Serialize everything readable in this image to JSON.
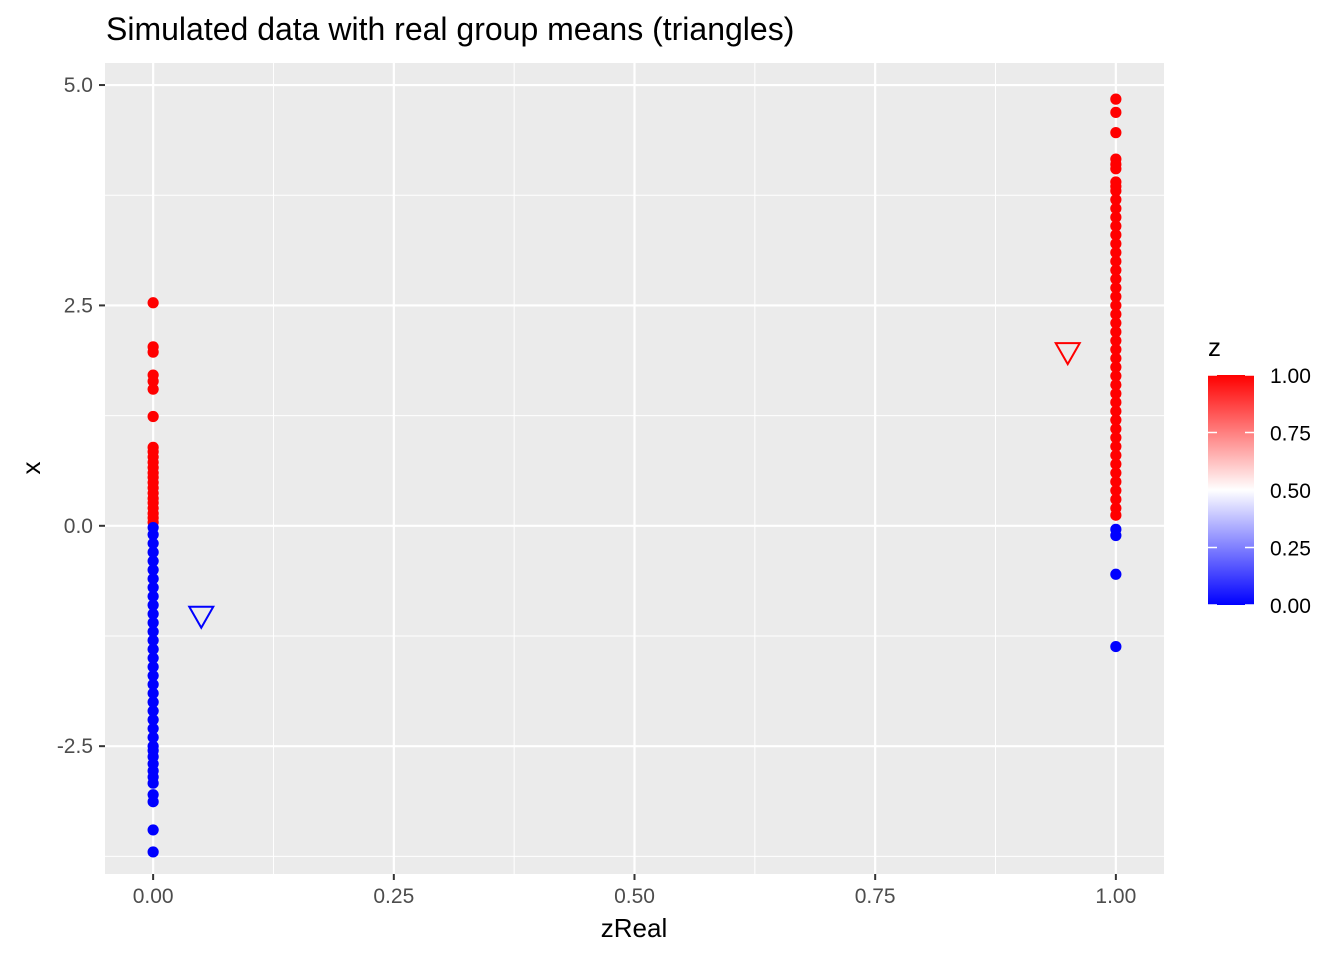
{
  "chart_data": {
    "type": "scatter",
    "title": "Simulated data with real group means (triangles)",
    "xlabel": "zReal",
    "ylabel": "x",
    "xlim": [
      -0.05,
      1.05
    ],
    "ylim": [
      -3.95,
      5.25
    ],
    "x_ticks": [
      0.0,
      0.25,
      0.5,
      0.75,
      1.0
    ],
    "x_tick_labels": [
      "0.00",
      "0.25",
      "0.50",
      "0.75",
      "1.00"
    ],
    "y_ticks": [
      -2.5,
      0.0,
      2.5,
      5.0
    ],
    "y_tick_labels": [
      "-2.5",
      "0.0",
      "2.5",
      "5.0"
    ],
    "grid": true,
    "background": "#ebebeb",
    "color_scale": {
      "title": "z",
      "low": "#0000ff",
      "mid": "#ffffff",
      "high": "#ff0000",
      "breaks": [
        0.0,
        0.25,
        0.5,
        0.75,
        1.0
      ],
      "labels": [
        "0.00",
        "0.25",
        "0.50",
        "0.75",
        "1.00"
      ],
      "legend_position": "right"
    },
    "group_means": [
      {
        "x": 0.05,
        "y": -1.02,
        "z": 0,
        "shape": "triangle-down"
      },
      {
        "x": 0.95,
        "y": 1.97,
        "z": 1,
        "shape": "triangle-down"
      }
    ],
    "series": [
      {
        "x_value": 0,
        "z": 1,
        "y": [
          2.53,
          2.03,
          1.97,
          1.71,
          1.64,
          1.55,
          1.24,
          0.89,
          0.84,
          0.78,
          0.72,
          0.66,
          0.6,
          0.55,
          0.49,
          0.43,
          0.37,
          0.31,
          0.26,
          0.2,
          0.14,
          0.09,
          0.04
        ]
      },
      {
        "x_value": 0,
        "z": 0,
        "y": [
          -0.02,
          -0.1,
          -0.2,
          -0.3,
          -0.4,
          -0.5,
          -0.6,
          -0.7,
          -0.8,
          -0.9,
          -1.0,
          -1.1,
          -1.2,
          -1.3,
          -1.4,
          -1.5,
          -1.6,
          -1.7,
          -1.8,
          -1.9,
          -2.0,
          -2.1,
          -2.2,
          -2.3,
          -2.4,
          -2.5,
          -2.55,
          -2.62,
          -2.7,
          -2.78,
          -2.85,
          -2.92,
          -3.05,
          -3.13,
          -3.45,
          -3.7
        ]
      },
      {
        "x_value": 1,
        "z": 1,
        "y": [
          4.84,
          4.69,
          4.46,
          4.16,
          4.1,
          4.05,
          3.9,
          3.85,
          3.8,
          3.7,
          3.6,
          3.5,
          3.4,
          3.3,
          3.2,
          3.1,
          3.0,
          2.9,
          2.8,
          2.7,
          2.6,
          2.5,
          2.4,
          2.3,
          2.2,
          2.1,
          2.0,
          1.9,
          1.8,
          1.7,
          1.6,
          1.5,
          1.4,
          1.3,
          1.2,
          1.1,
          1.0,
          0.9,
          0.8,
          0.7,
          0.6,
          0.5,
          0.4,
          0.3,
          0.2,
          0.12
        ]
      },
      {
        "x_value": 1,
        "z": 0,
        "y": [
          -0.04,
          -0.11,
          -0.55,
          -1.37
        ]
      }
    ]
  }
}
